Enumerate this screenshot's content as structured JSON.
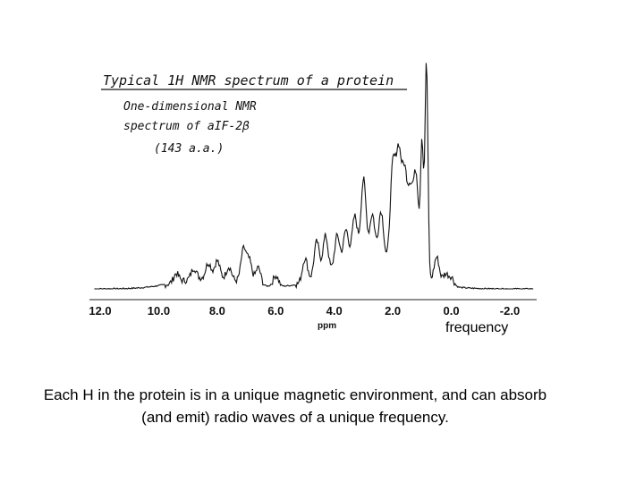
{
  "chart_data": {
    "type": "line",
    "annotations": [
      "Typical 1H NMR spectrum of a protein",
      "One-dimensional NMR",
      "spectrum of aIF-2β",
      "(143 a.a.)"
    ],
    "xlabel": "ppm",
    "xlim": [
      12.0,
      -2.8
    ],
    "x_reversed": true,
    "xticks": [
      "12.0",
      "10.0",
      "8.0",
      "6.0",
      "4.0",
      "2.0",
      "0.0",
      "-2.0"
    ],
    "grid": false,
    "peaks": [
      {
        "ppm": 9.4,
        "intensity": 0.04
      },
      {
        "ppm": 8.8,
        "intensity": 0.05
      },
      {
        "ppm": 8.3,
        "intensity": 0.07
      },
      {
        "ppm": 8.0,
        "intensity": 0.08
      },
      {
        "ppm": 7.6,
        "intensity": 0.06
      },
      {
        "ppm": 7.1,
        "intensity": 0.15
      },
      {
        "ppm": 6.9,
        "intensity": 0.1
      },
      {
        "ppm": 6.6,
        "intensity": 0.08
      },
      {
        "ppm": 6.0,
        "intensity": 0.05
      },
      {
        "ppm": 5.0,
        "intensity": 0.11
      },
      {
        "ppm": 4.6,
        "intensity": 0.17
      },
      {
        "ppm": 4.3,
        "intensity": 0.18
      },
      {
        "ppm": 3.9,
        "intensity": 0.16
      },
      {
        "ppm": 3.6,
        "intensity": 0.17
      },
      {
        "ppm": 3.3,
        "intensity": 0.22
      },
      {
        "ppm": 3.0,
        "intensity": 0.38
      },
      {
        "ppm": 2.7,
        "intensity": 0.22
      },
      {
        "ppm": 2.4,
        "intensity": 0.24
      },
      {
        "ppm": 2.0,
        "intensity": 0.45
      },
      {
        "ppm": 1.8,
        "intensity": 0.5
      },
      {
        "ppm": 1.6,
        "intensity": 0.42
      },
      {
        "ppm": 1.4,
        "intensity": 0.35
      },
      {
        "ppm": 1.2,
        "intensity": 0.45
      },
      {
        "ppm": 1.0,
        "intensity": 0.6
      },
      {
        "ppm": 0.85,
        "intensity": 1.0
      },
      {
        "ppm": 0.5,
        "intensity": 0.12
      },
      {
        "ppm": 0.2,
        "intensity": 0.05
      },
      {
        "ppm": 0.0,
        "intensity": 0.04
      }
    ]
  },
  "frequency_label": "frequency",
  "caption": "Each H in the protein is in a unique magnetic environment, and can absorb (and emit) radio waves of a unique frequency."
}
